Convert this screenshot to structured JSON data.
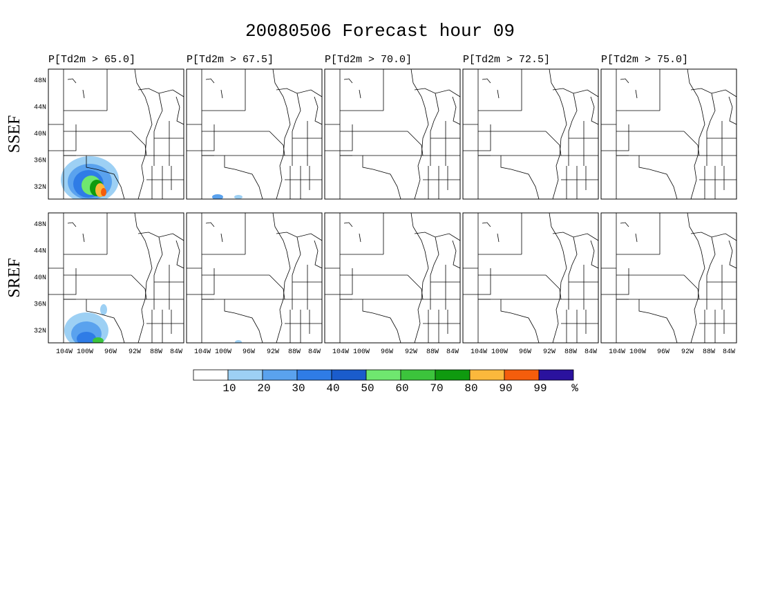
{
  "title": "20080506 Forecast hour 09",
  "rows": [
    {
      "label": "SSEF"
    },
    {
      "label": "SREF"
    }
  ],
  "panels": [
    "P[Td2m > 65.0]",
    "P[Td2m > 67.5]",
    "P[Td2m > 70.0]",
    "P[Td2m > 72.5]",
    "P[Td2m > 75.0]"
  ],
  "lat_labels": [
    "48N",
    "44N",
    "40N",
    "36N",
    "32N"
  ],
  "lon_labels": [
    "104W",
    "100W",
    "96W",
    "92W",
    "88W",
    "84W"
  ],
  "colorbar": {
    "colors": [
      "#ffffff",
      "#9dd0f4",
      "#5aa2ee",
      "#2f7ce6",
      "#1a5ccc",
      "#6fe76f",
      "#3cc43c",
      "#0f9a0f",
      "#fbb83c",
      "#f45d0c",
      "#2a129e"
    ],
    "bounds": [
      10,
      20,
      30,
      40,
      50,
      60,
      70,
      80,
      90,
      99
    ],
    "unit": "%"
  }
}
